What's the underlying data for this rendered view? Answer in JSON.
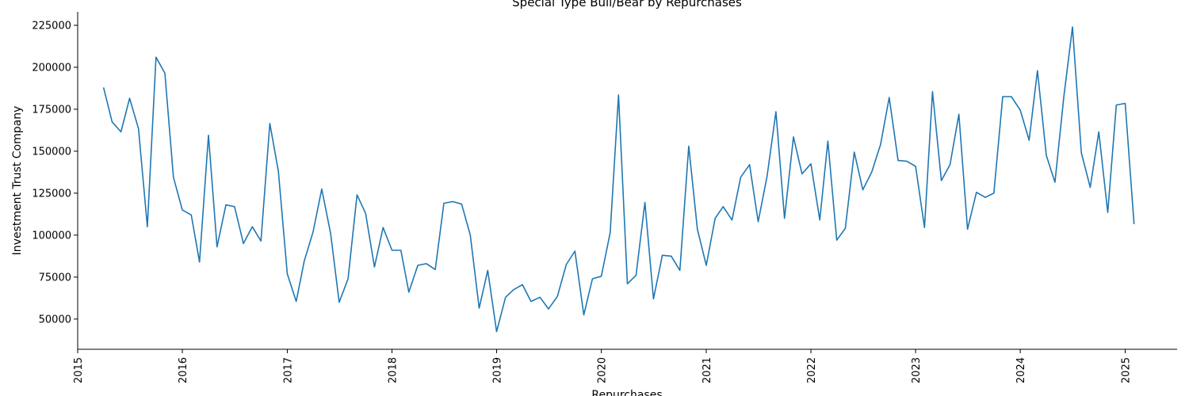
{
  "chart_data": {
    "type": "line",
    "title": "Special Type Bull/Bear by Repurchases",
    "xlabel": "Repurchases",
    "ylabel": "Investment Trust Company",
    "color": "#1f77b4",
    "grid": false,
    "xlim": [
      "2015-01-01",
      "2025-07-01"
    ],
    "ylim": [
      32000,
      233000
    ],
    "x_ticks": [
      "2015",
      "2016",
      "2017",
      "2018",
      "2019",
      "2020",
      "2021",
      "2022",
      "2023",
      "2024",
      "2025"
    ],
    "y_ticks": [
      "50000",
      "75000",
      "100000",
      "125000",
      "150000",
      "175000",
      "200000",
      "225000"
    ],
    "series": [
      {
        "x": [
          "2015-04",
          "2015-05",
          "2015-06",
          "2015-07",
          "2015-08",
          "2015-09",
          "2015-10",
          "2015-11",
          "2015-12",
          "2016-01",
          "2016-02",
          "2016-03",
          "2016-04",
          "2016-05",
          "2016-06",
          "2016-07",
          "2016-08",
          "2016-09",
          "2016-10",
          "2016-11",
          "2016-12",
          "2017-01",
          "2017-02",
          "2017-03",
          "2017-04",
          "2017-05",
          "2017-06",
          "2017-07",
          "2017-08",
          "2017-09",
          "2017-10",
          "2017-11",
          "2017-12",
          "2018-01",
          "2018-02",
          "2018-03",
          "2018-04",
          "2018-05",
          "2018-06",
          "2018-07",
          "2018-08",
          "2018-09",
          "2018-10",
          "2018-11",
          "2018-12",
          "2019-01",
          "2019-02",
          "2019-03",
          "2019-04",
          "2019-05",
          "2019-06",
          "2019-07",
          "2019-08",
          "2019-09",
          "2019-10",
          "2019-11",
          "2019-12",
          "2020-01",
          "2020-02",
          "2020-03",
          "2020-04",
          "2020-05",
          "2020-06",
          "2020-07",
          "2020-08",
          "2020-09",
          "2020-10",
          "2020-11",
          "2020-12",
          "2021-01",
          "2021-02",
          "2021-03",
          "2021-04",
          "2021-05",
          "2021-06",
          "2021-07",
          "2021-08",
          "2021-09",
          "2021-10",
          "2021-11",
          "2021-12",
          "2022-01",
          "2022-02",
          "2022-03",
          "2022-04",
          "2022-05",
          "2022-06",
          "2022-07",
          "2022-08",
          "2022-09",
          "2022-10",
          "2022-11",
          "2022-12",
          "2023-01",
          "2023-02",
          "2023-03",
          "2023-04",
          "2023-05",
          "2023-06",
          "2023-07",
          "2023-08",
          "2023-09",
          "2023-10",
          "2023-11",
          "2023-12",
          "2024-01",
          "2024-02",
          "2024-03",
          "2024-04",
          "2024-05",
          "2024-06",
          "2024-07",
          "2024-08",
          "2024-09",
          "2024-10",
          "2024-11",
          "2024-12",
          "2025-01",
          "2025-02"
        ],
        "values": [
          188000,
          167500,
          161500,
          181500,
          163500,
          105000,
          206000,
          196500,
          134500,
          115000,
          112000,
          84000,
          159500,
          93000,
          118000,
          117000,
          95000,
          105000,
          96500,
          166500,
          138000,
          77000,
          60500,
          84500,
          102000,
          127500,
          101000,
          60000,
          74000,
          124000,
          113000,
          81000,
          104500,
          91000,
          91000,
          66000,
          82000,
          83000,
          79500,
          119000,
          120000,
          118500,
          100000,
          56500,
          79000,
          42500,
          63000,
          67500,
          70500,
          60500,
          63000,
          56000,
          63500,
          82500,
          90500,
          52500,
          74000,
          75500,
          101500,
          183500,
          71000,
          76000,
          119500,
          62000,
          88000,
          87500,
          79000,
          153000,
          103500,
          82000,
          110000,
          117000,
          109000,
          134500,
          142000,
          108000,
          135000,
          173500,
          110000,
          158500,
          136500,
          142500,
          109000,
          156000,
          97000,
          104000,
          149500,
          127000,
          137500,
          154000,
          182000,
          144500,
          144000,
          141000,
          104500,
          185500,
          132500,
          142000,
          172000,
          103500,
          125500,
          122500,
          125000,
          182500,
          182500,
          174500,
          156500,
          198000,
          147500,
          131500,
          182500,
          224000,
          149000,
          128500,
          161500,
          113500,
          177500,
          178500,
          106500
        ]
      }
    ]
  }
}
